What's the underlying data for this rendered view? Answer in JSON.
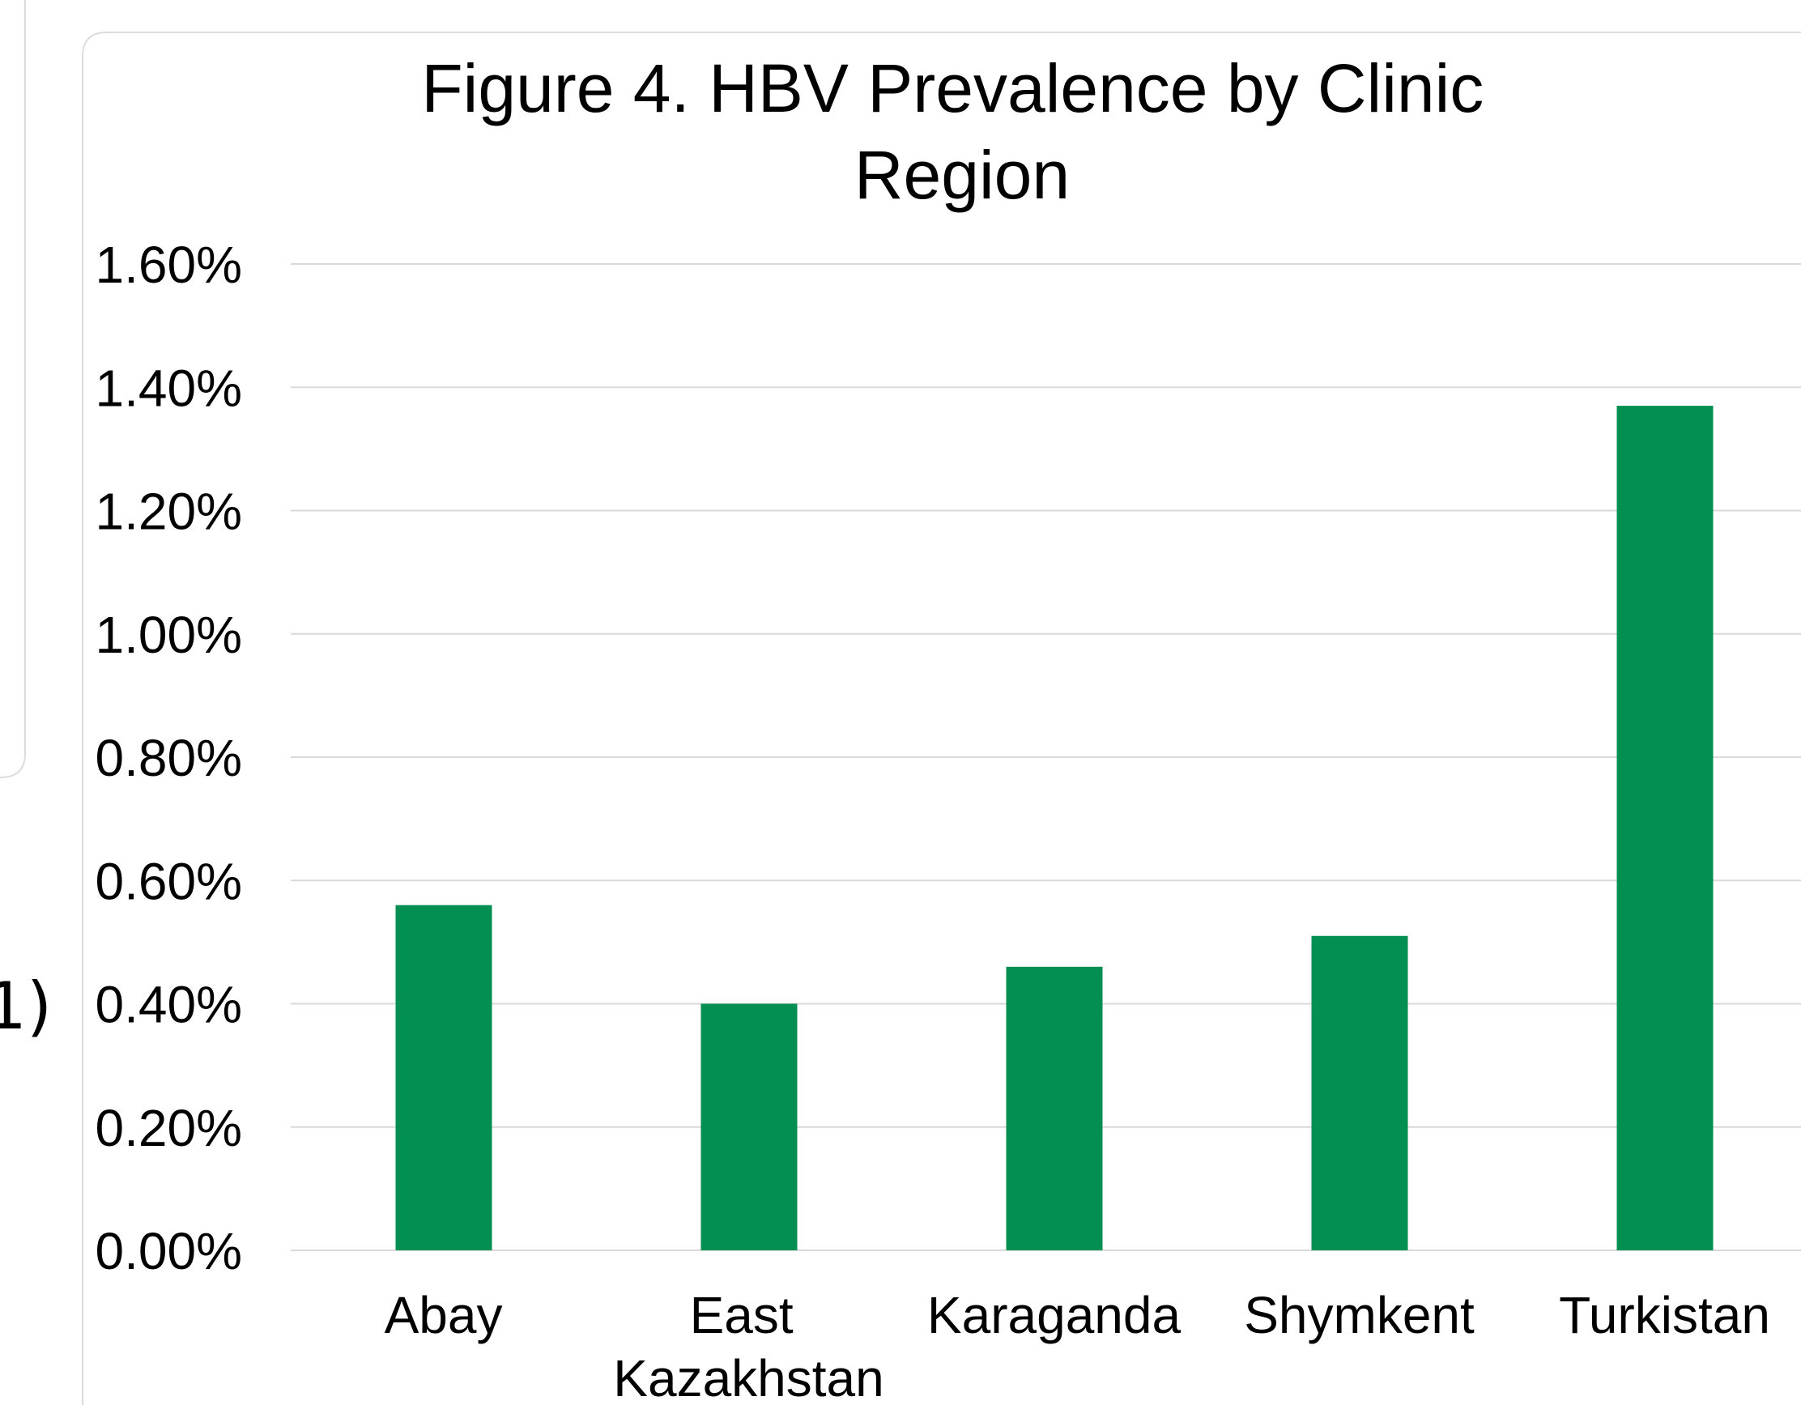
{
  "left_panel": {
    "text": "1)"
  },
  "chart_data": {
    "type": "bar",
    "title": "Figure 4. HBV Prevalence by Clinic Region",
    "categories": [
      "Abay",
      "East Kazakhstan",
      "Karaganda",
      "Shymkent",
      "Turkistan"
    ],
    "values": [
      0.56,
      0.4,
      0.46,
      0.51,
      1.37
    ],
    "color": "#038f51",
    "ylim": [
      0,
      1.6
    ],
    "yticks": [
      {
        "value": 0,
        "label": "0.00%"
      },
      {
        "value": 0.2,
        "label": "0.20%"
      },
      {
        "value": 0.4,
        "label": "0.40%"
      },
      {
        "value": 0.6,
        "label": "0.60%"
      },
      {
        "value": 0.8,
        "label": "0.80%"
      },
      {
        "value": 1.0,
        "label": "1.00%"
      },
      {
        "value": 1.2,
        "label": "1.20%"
      },
      {
        "value": 1.4,
        "label": "1.40%"
      },
      {
        "value": 1.6,
        "label": "1.60%"
      }
    ],
    "grid": true
  }
}
